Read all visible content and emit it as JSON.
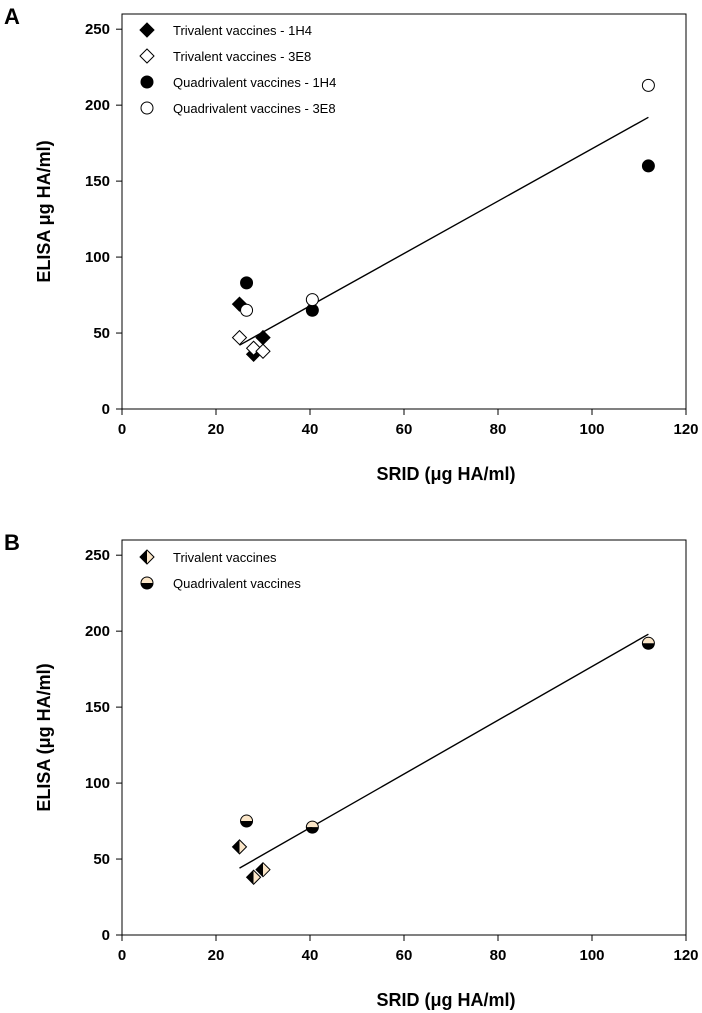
{
  "chart_data": [
    {
      "type": "scatter",
      "panel_label": "A",
      "xlabel": "SRID (μg HA/ml)",
      "ylabel": "ELISA μg HA/ml)",
      "xlim": [
        0,
        120
      ],
      "ylim": [
        0,
        260
      ],
      "xticks": [
        0,
        20,
        40,
        60,
        80,
        100,
        120
      ],
      "yticks": [
        0,
        50,
        100,
        150,
        200,
        250
      ],
      "legend_position": "top-left",
      "series": [
        {
          "name": "Trivalent vaccines - 1H4",
          "marker": "diamond-filled",
          "points": [
            [
              25,
              69
            ],
            [
              28,
              36
            ],
            [
              30,
              47
            ]
          ]
        },
        {
          "name": "Trivalent vaccines - 3E8",
          "marker": "diamond-open",
          "points": [
            [
              25,
              47
            ],
            [
              28,
              40
            ],
            [
              30,
              38
            ]
          ]
        },
        {
          "name": "Quadrivalent vaccines - 1H4",
          "marker": "circle-filled",
          "points": [
            [
              26.5,
              83
            ],
            [
              40.5,
              65
            ],
            [
              112,
              160
            ]
          ]
        },
        {
          "name": "Quadrivalent vaccines - 3E8",
          "marker": "circle-open",
          "points": [
            [
              26.5,
              65
            ],
            [
              40.5,
              72
            ],
            [
              112,
              213
            ]
          ]
        }
      ],
      "regression_line": [
        [
          25,
          42
        ],
        [
          112,
          192
        ]
      ]
    },
    {
      "type": "scatter",
      "panel_label": "B",
      "xlabel": "SRID (μg HA/ml)",
      "ylabel": "ELISA (μg HA/ml)",
      "xlim": [
        0,
        120
      ],
      "ylim": [
        0,
        260
      ],
      "xticks": [
        0,
        20,
        40,
        60,
        80,
        100,
        120
      ],
      "yticks": [
        0,
        50,
        100,
        150,
        200,
        250
      ],
      "legend_position": "top-left",
      "series": [
        {
          "name": "Trivalent vaccines",
          "marker": "diamond-half",
          "points": [
            [
              25,
              58
            ],
            [
              28,
              38
            ],
            [
              30,
              43
            ]
          ]
        },
        {
          "name": "Quadrivalent vaccines",
          "marker": "circle-half",
          "points": [
            [
              26.5,
              75
            ],
            [
              40.5,
              71
            ],
            [
              112,
              192
            ]
          ]
        }
      ],
      "regression_line": [
        [
          25,
          44
        ],
        [
          112,
          198
        ]
      ]
    }
  ],
  "colors": {
    "marker_fill_dark": "#000000",
    "marker_fill_light": "#fbe6c8",
    "open_fill": "#ffffff",
    "stroke": "#000000"
  }
}
